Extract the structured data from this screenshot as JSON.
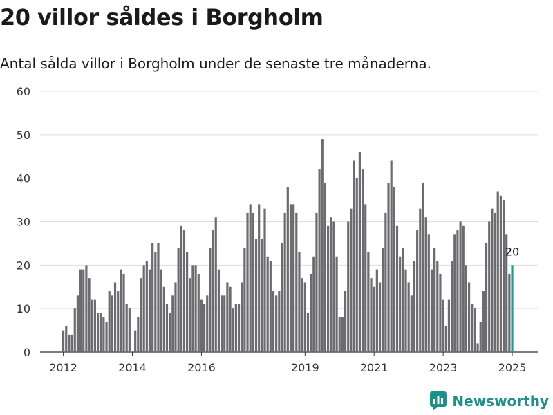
{
  "header": {
    "title": "20 villor såldes i Borgholm",
    "subtitle": "Antal sålda villor i Borgholm under de senaste tre månaderna."
  },
  "brand": {
    "name": "Newsworthy"
  },
  "colors": {
    "bar": "#6b6b70",
    "highlight": "#1f9a94",
    "grid": "#dddddd",
    "brand": "#1e8f8a"
  },
  "chart_data": {
    "type": "bar",
    "title": "20 villor såldes i Borgholm",
    "subtitle": "Antal sålda villor i Borgholm under de senaste tre månaderna.",
    "xlabel": "",
    "ylabel": "",
    "ylim": [
      0,
      60
    ],
    "yticks": [
      0,
      10,
      20,
      30,
      40,
      50,
      60
    ],
    "xticks": [
      "2012",
      "2014",
      "2016",
      "2019",
      "2021",
      "2023",
      "2025"
    ],
    "grid": true,
    "legend": "none",
    "highlight_label": "20",
    "categories": [
      "2012-01",
      "2012-02",
      "2012-03",
      "2012-04",
      "2012-05",
      "2012-06",
      "2012-07",
      "2012-08",
      "2012-09",
      "2012-10",
      "2012-11",
      "2012-12",
      "2013-01",
      "2013-02",
      "2013-03",
      "2013-04",
      "2013-05",
      "2013-06",
      "2013-07",
      "2013-08",
      "2013-09",
      "2013-10",
      "2013-11",
      "2013-12",
      "2014-01",
      "2014-02",
      "2014-03",
      "2014-04",
      "2014-05",
      "2014-06",
      "2014-07",
      "2014-08",
      "2014-09",
      "2014-10",
      "2014-11",
      "2014-12",
      "2015-01",
      "2015-02",
      "2015-03",
      "2015-04",
      "2015-05",
      "2015-06",
      "2015-07",
      "2015-08",
      "2015-09",
      "2015-10",
      "2015-11",
      "2015-12",
      "2016-01",
      "2016-02",
      "2016-03",
      "2016-04",
      "2016-05",
      "2016-06",
      "2016-07",
      "2016-08",
      "2016-09",
      "2016-10",
      "2016-11",
      "2016-12",
      "2017-01",
      "2017-02",
      "2017-03",
      "2017-04",
      "2017-05",
      "2017-06",
      "2017-07",
      "2017-08",
      "2017-09",
      "2017-10",
      "2017-11",
      "2017-12",
      "2018-01",
      "2018-02",
      "2018-03",
      "2018-04",
      "2018-05",
      "2018-06",
      "2018-07",
      "2018-08",
      "2018-09",
      "2018-10",
      "2018-11",
      "2018-12",
      "2019-01",
      "2019-02",
      "2019-03",
      "2019-04",
      "2019-05",
      "2019-06",
      "2019-07",
      "2019-08",
      "2019-09",
      "2019-10",
      "2019-11",
      "2019-12",
      "2020-01",
      "2020-02",
      "2020-03",
      "2020-04",
      "2020-05",
      "2020-06",
      "2020-07",
      "2020-08",
      "2020-09",
      "2020-10",
      "2020-11",
      "2020-12",
      "2021-01",
      "2021-02",
      "2021-03",
      "2021-04",
      "2021-05",
      "2021-06",
      "2021-07",
      "2021-08",
      "2021-09",
      "2021-10",
      "2021-11",
      "2021-12",
      "2022-01",
      "2022-02",
      "2022-03",
      "2022-04",
      "2022-05",
      "2022-06",
      "2022-07",
      "2022-08",
      "2022-09",
      "2022-10",
      "2022-11",
      "2022-12",
      "2023-01",
      "2023-02",
      "2023-03",
      "2023-04",
      "2023-05",
      "2023-06",
      "2023-07",
      "2023-08",
      "2023-09",
      "2023-10",
      "2023-11",
      "2023-12",
      "2024-01",
      "2024-02",
      "2024-03",
      "2024-04",
      "2024-05",
      "2024-06",
      "2024-07",
      "2024-08",
      "2024-09",
      "2024-10",
      "2024-11",
      "2024-12",
      "2025-01"
    ],
    "values": [
      5,
      6,
      4,
      4,
      10,
      13,
      19,
      19,
      20,
      17,
      12,
      12,
      9,
      9,
      8,
      7,
      14,
      13,
      16,
      14,
      19,
      18,
      11,
      10,
      0,
      5,
      8,
      17,
      20,
      21,
      19,
      25,
      23,
      25,
      19,
      15,
      11,
      9,
      13,
      16,
      24,
      29,
      28,
      23,
      17,
      20,
      20,
      18,
      12,
      11,
      13,
      24,
      28,
      31,
      19,
      13,
      13,
      16,
      15,
      10,
      11,
      11,
      16,
      24,
      32,
      34,
      32,
      26,
      34,
      26,
      33,
      22,
      21,
      14,
      13,
      14,
      25,
      32,
      38,
      34,
      34,
      32,
      23,
      17,
      16,
      9,
      18,
      22,
      32,
      42,
      49,
      39,
      29,
      31,
      30,
      22,
      8,
      8,
      14,
      30,
      33,
      44,
      40,
      46,
      42,
      34,
      23,
      17,
      15,
      19,
      16,
      24,
      32,
      39,
      44,
      38,
      29,
      22,
      24,
      19,
      16,
      13,
      21,
      28,
      33,
      39,
      31,
      27,
      19,
      24,
      21,
      18,
      12,
      6,
      12,
      21,
      27,
      28,
      30,
      29,
      20,
      16,
      11,
      10,
      2,
      7,
      14,
      25,
      30,
      33,
      32,
      37,
      36,
      35,
      27,
      18,
      20
    ],
    "highlight_index": 156
  }
}
